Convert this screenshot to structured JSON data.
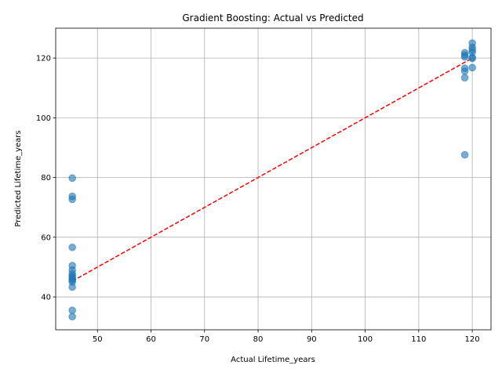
{
  "chart_data": {
    "type": "scatter",
    "title": "Gradient Boosting: Actual vs Predicted",
    "xlabel": "Actual Lifetime_years",
    "ylabel": "Predicted Lifetime_years",
    "xlim": [
      42.2,
      123.5
    ],
    "ylim": [
      29.0,
      130.0
    ],
    "xticks": [
      50,
      60,
      70,
      80,
      90,
      100,
      110,
      120
    ],
    "yticks": [
      40,
      60,
      80,
      100,
      120
    ],
    "grid": true,
    "colors": {
      "points": "#1f77b4",
      "reference_line": "#ff0000"
    },
    "reference_line": {
      "style": "dashed",
      "from": [
        45.3,
        45.3
      ],
      "to": [
        120.0,
        120.0
      ]
    },
    "points": [
      {
        "x": 45.3,
        "y": 79.8
      },
      {
        "x": 45.3,
        "y": 73.7
      },
      {
        "x": 45.3,
        "y": 72.7
      },
      {
        "x": 45.3,
        "y": 56.6
      },
      {
        "x": 45.3,
        "y": 50.5
      },
      {
        "x": 45.3,
        "y": 49.0
      },
      {
        "x": 45.3,
        "y": 47.8
      },
      {
        "x": 45.3,
        "y": 47.1
      },
      {
        "x": 45.3,
        "y": 46.6
      },
      {
        "x": 45.3,
        "y": 46.0
      },
      {
        "x": 45.3,
        "y": 45.6
      },
      {
        "x": 45.3,
        "y": 45.0
      },
      {
        "x": 45.3,
        "y": 43.3
      },
      {
        "x": 45.3,
        "y": 35.5
      },
      {
        "x": 45.3,
        "y": 33.4
      },
      {
        "x": 118.6,
        "y": 121.8
      },
      {
        "x": 118.6,
        "y": 121.0
      },
      {
        "x": 118.6,
        "y": 120.4
      },
      {
        "x": 118.6,
        "y": 116.6
      },
      {
        "x": 118.6,
        "y": 115.6
      },
      {
        "x": 118.6,
        "y": 113.4
      },
      {
        "x": 118.6,
        "y": 87.6
      },
      {
        "x": 120.0,
        "y": 125.0
      },
      {
        "x": 120.0,
        "y": 123.6
      },
      {
        "x": 120.0,
        "y": 122.7
      },
      {
        "x": 120.0,
        "y": 121.9
      },
      {
        "x": 120.0,
        "y": 120.2
      },
      {
        "x": 120.0,
        "y": 119.9
      },
      {
        "x": 120.0,
        "y": 116.8
      }
    ]
  }
}
